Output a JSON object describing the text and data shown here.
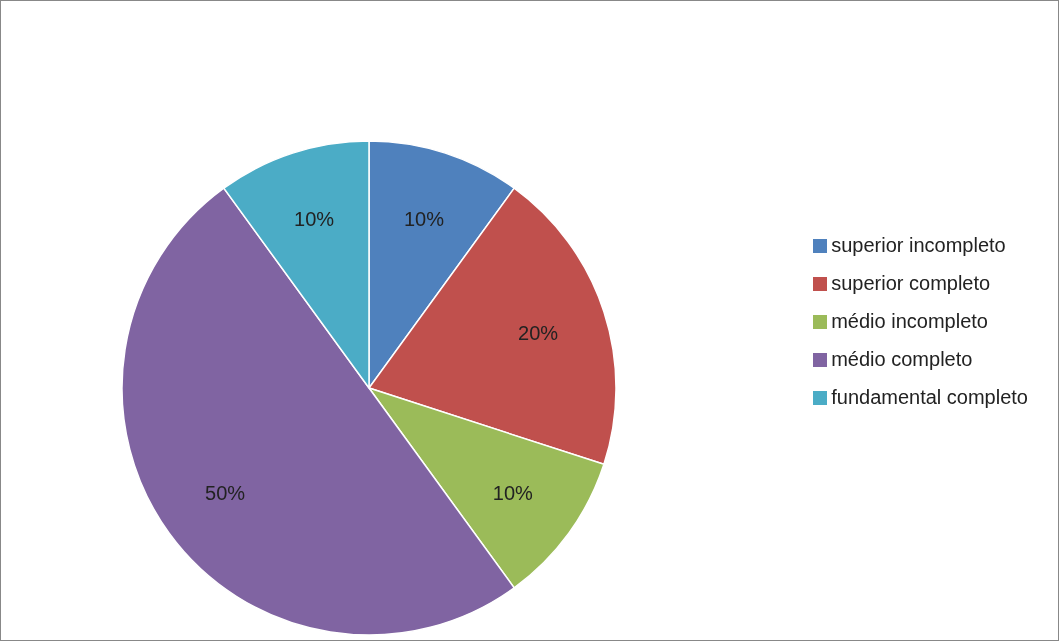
{
  "chart_data": {
    "type": "pie",
    "categories": [
      "superior incompleto",
      "superior completo",
      "médio incompleto",
      "médio completo",
      "fundamental completo"
    ],
    "values": [
      10,
      20,
      10,
      50,
      10
    ],
    "value_labels": [
      "10%",
      "20%",
      "10%",
      "50%",
      "10%"
    ],
    "colors": [
      "#4f81bd",
      "#c0504d",
      "#9bbb59",
      "#8064a2",
      "#4bacc6"
    ],
    "legend": "right"
  }
}
